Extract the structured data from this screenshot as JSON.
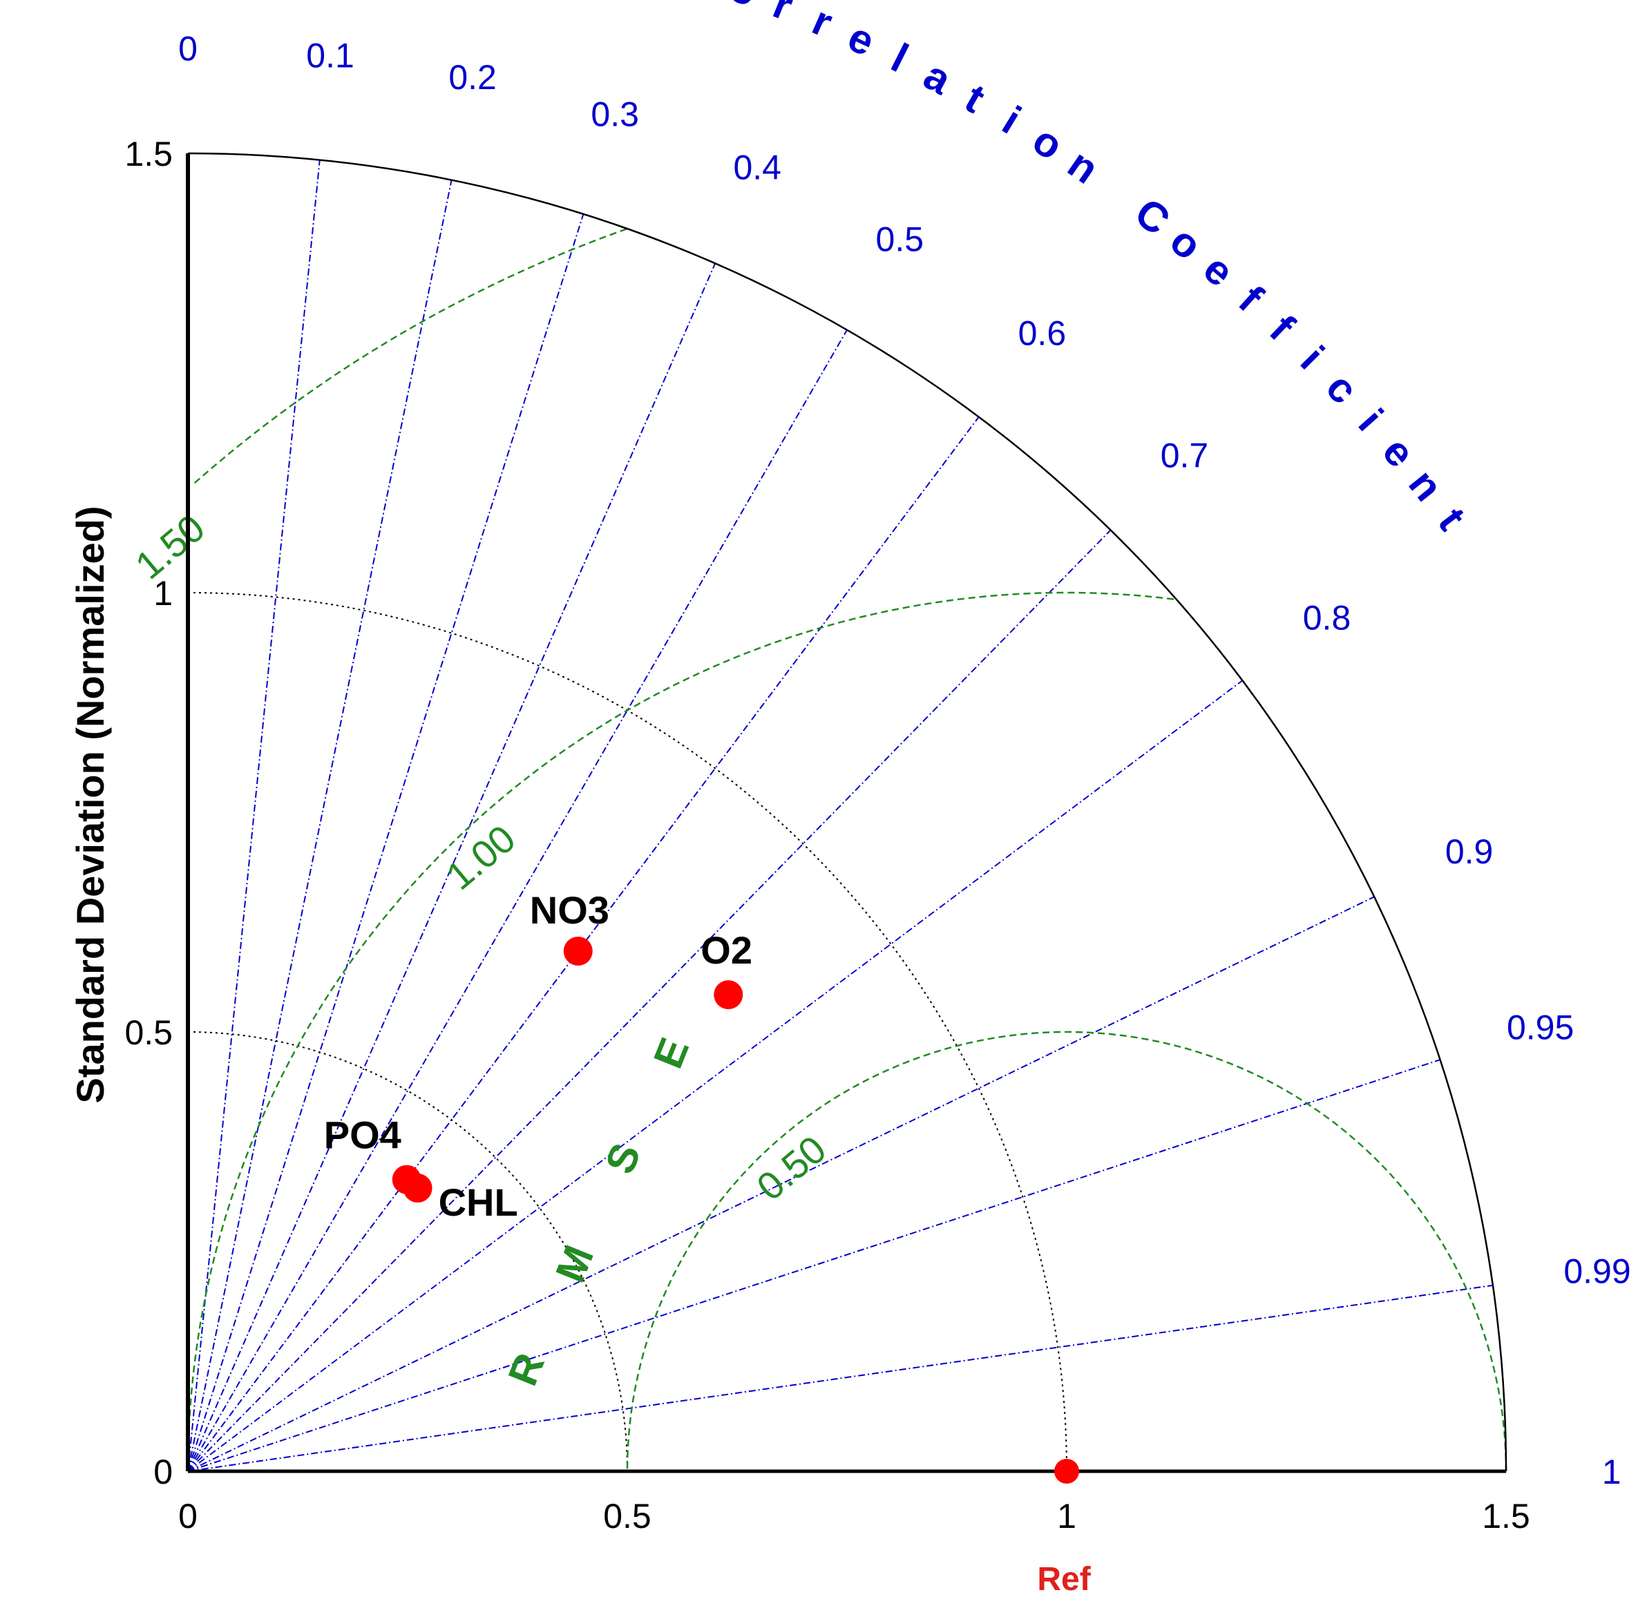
{
  "chart_data": {
    "type": "taylor",
    "ylabel": "Standard Deviation (Normalized)",
    "corr_title": "Correlation Coefficient",
    "rmse_title": "RMSE",
    "ref_label": "Ref",
    "std_max": 1.5,
    "std_ticks": [
      {
        "value": 0,
        "label": "0"
      },
      {
        "value": 0.5,
        "label": "0.5"
      },
      {
        "value": 1,
        "label": "1"
      },
      {
        "value": 1.5,
        "label": "1.5"
      }
    ],
    "std_arcs": [
      0.5,
      1.0
    ],
    "corr_ticks": [
      {
        "value": 0,
        "label": "0"
      },
      {
        "value": 0.1,
        "label": "0.1"
      },
      {
        "value": 0.2,
        "label": "0.2"
      },
      {
        "value": 0.3,
        "label": "0.3"
      },
      {
        "value": 0.4,
        "label": "0.4"
      },
      {
        "value": 0.5,
        "label": "0.5"
      },
      {
        "value": 0.6,
        "label": "0.6"
      },
      {
        "value": 0.7,
        "label": "0.7"
      },
      {
        "value": 0.8,
        "label": "0.8"
      },
      {
        "value": 0.9,
        "label": "0.9"
      },
      {
        "value": 0.95,
        "label": "0.95"
      },
      {
        "value": 0.99,
        "label": "0.99"
      },
      {
        "value": 1,
        "label": "1"
      }
    ],
    "rmse_contours": [
      {
        "value": 0.5,
        "label": "0.50"
      },
      {
        "value": 1.0,
        "label": "1.00"
      },
      {
        "value": 1.5,
        "label": "1.50"
      }
    ],
    "reference": {
      "std": 1.0,
      "corr": 1.0
    },
    "points": [
      {
        "name": "NO3",
        "std": 0.74,
        "corr": 0.6
      },
      {
        "name": "O2",
        "std": 0.82,
        "corr": 0.75
      },
      {
        "name": "PO4",
        "std": 0.415,
        "corr": 0.6
      },
      {
        "name": "CHL",
        "std": 0.415,
        "corr": 0.63
      }
    ],
    "colors": {
      "axis": "#000000",
      "corr": "#0000cc",
      "rmse": "#228b22",
      "marker": "#ff0000",
      "ref_label": "#e0201b"
    }
  }
}
